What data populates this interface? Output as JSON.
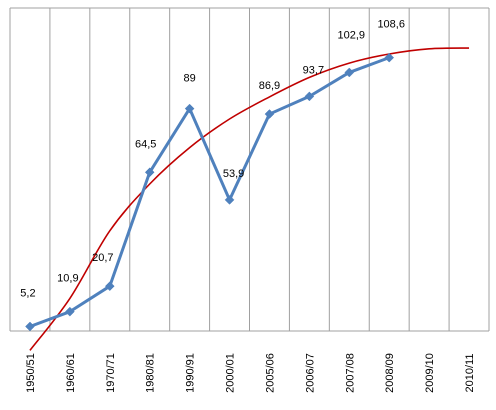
{
  "chart_data": {
    "type": "line",
    "title": "",
    "xlabel": "",
    "ylabel": "",
    "categories": [
      "1950/51",
      "1960/61",
      "1970/71",
      "1980/81",
      "1990/91",
      "2000/01",
      "2005/06",
      "2006/07",
      "2007/08",
      "2008/09",
      "2009/10",
      "2010/11"
    ],
    "ylim": [
      0,
      120
    ],
    "grid": "vertical",
    "legend": "none",
    "series": [
      {
        "values": [
          5.2,
          10.9,
          20.7,
          64.5,
          89,
          53.9,
          86.9,
          93.7,
          102.9,
          108.6,
          null,
          null
        ],
        "data_labels": [
          "5,2",
          "10,9",
          "20,7",
          "64,5",
          "89",
          "53,9",
          "86,9",
          "93,7",
          "102,9",
          "108,6",
          "",
          ""
        ],
        "color": "#4F81BD",
        "marker": "diamond"
      },
      {
        "values": [
          -4,
          16,
          42,
          60,
          74,
          85,
          93.5,
          101,
          106.5,
          110,
          112,
          112.3
        ],
        "color": "#C00000",
        "smooth": true
      }
    ]
  },
  "colors": {
    "gridline": "#A0A0A0",
    "frame": "#A0A0A0",
    "background": "#ffffff"
  }
}
